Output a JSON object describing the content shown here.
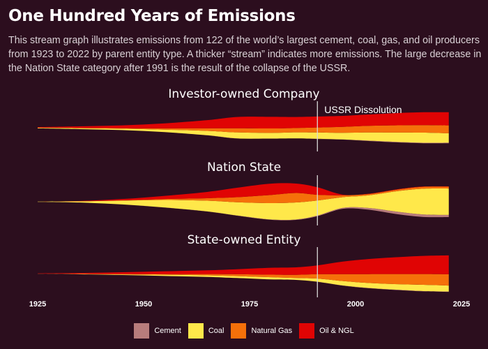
{
  "title": "One Hundred Years of Emissions",
  "description": "This stream graph illustrates emissions from 122 of the world’s largest cement, coal, gas, and oil producers from 1923 to 2022 by parent entity type. A thicker “stream” indicates more emissions. The large decrease in the Nation State category after 1991 is the result of the collapse of the USSR.",
  "colors": {
    "background": "#2c0e1e",
    "Cement": "#b87c7c",
    "Coal": "#ffe84a",
    "Natural Gas": "#f5700a",
    "Oil & NGL": "#e00404"
  },
  "chart_data": {
    "type": "area",
    "subtype": "streamgraph",
    "x_ticks": [
      1925,
      1950,
      1975,
      2000,
      2025
    ],
    "xlim": [
      1925,
      2025
    ],
    "annotation": {
      "label": "USSR Dissolution",
      "x": 1991
    },
    "legend": [
      "Cement",
      "Coal",
      "Natural Gas",
      "Oil & NGL"
    ],
    "legend_position": "bottom",
    "x": [
      1925,
      1935,
      1945,
      1955,
      1965,
      1972,
      1980,
      1986,
      1991,
      1997,
      2003,
      2010,
      2016,
      2022
    ],
    "panels": [
      {
        "title": "Investor-owned Company",
        "series": [
          {
            "name": "Cement",
            "values": [
              0,
              0,
              0,
              0,
              0.01,
              0.02,
              0.02,
              0.02,
              0.03,
              0.04,
              0.06,
              0.07,
              0.08,
              0.09
            ]
          },
          {
            "name": "Coal",
            "values": [
              0.1,
              0.15,
              0.22,
              0.4,
              0.7,
              0.95,
              0.9,
              0.95,
              1.0,
              1.05,
              1.3,
              1.5,
              1.6,
              1.5
            ]
          },
          {
            "name": "Natural Gas",
            "values": [
              0.02,
              0.04,
              0.08,
              0.2,
              0.4,
              0.65,
              0.7,
              0.7,
              0.8,
              0.95,
              1.05,
              1.15,
              1.2,
              1.25
            ]
          },
          {
            "name": "Oil & NGL",
            "values": [
              0.1,
              0.25,
              0.45,
              0.8,
              1.3,
              1.8,
              1.85,
              1.75,
              1.75,
              1.75,
              1.8,
              1.95,
              2.05,
              2.1
            ]
          }
        ]
      },
      {
        "title": "Nation State",
        "series": [
          {
            "name": "Cement",
            "values": [
              0,
              0,
              0,
              0.01,
              0.02,
              0.03,
              0.05,
              0.07,
              0.1,
              0.15,
              0.28,
              0.4,
              0.4,
              0.35
            ]
          },
          {
            "name": "Coal",
            "values": [
              0.05,
              0.2,
              0.6,
              1.2,
              1.7,
              2.1,
              2.6,
              2.7,
              2.4,
              1.7,
              2.0,
              3.3,
              4.1,
              4.2
            ]
          },
          {
            "name": "Natural Gas",
            "values": [
              0,
              0.01,
              0.05,
              0.15,
              0.4,
              0.8,
              1.3,
              1.5,
              0.9,
              0.3,
              0.2,
              0.25,
              0.3,
              0.3
            ]
          },
          {
            "name": "Oil & NGL",
            "values": [
              0,
              0.05,
              0.2,
              0.5,
              1.0,
              1.5,
              1.8,
              1.5,
              1.2,
              0.1,
              0.05,
              0.05,
              0.05,
              0.05
            ]
          }
        ]
      },
      {
        "title": "State-owned Entity",
        "series": [
          {
            "name": "Cement",
            "values": [
              0,
              0,
              0,
              0,
              0,
              0,
              0.01,
              0.01,
              0.02,
              0.03,
              0.04,
              0.05,
              0.05,
              0.05
            ]
          },
          {
            "name": "Coal",
            "values": [
              0.02,
              0.05,
              0.1,
              0.2,
              0.25,
              0.3,
              0.35,
              0.3,
              0.5,
              0.7,
              0.8,
              0.9,
              1.0,
              0.95
            ]
          },
          {
            "name": "Natural Gas",
            "values": [
              0,
              0.02,
              0.05,
              0.1,
              0.2,
              0.3,
              0.4,
              0.5,
              0.7,
              1.1,
              1.4,
              1.6,
              1.7,
              1.8
            ]
          },
          {
            "name": "Oil & NGL",
            "values": [
              0.05,
              0.15,
              0.3,
              0.45,
              0.6,
              0.8,
              1.1,
              1.2,
              1.4,
              2.0,
              2.4,
              2.7,
              2.9,
              3.0
            ]
          }
        ]
      }
    ]
  }
}
